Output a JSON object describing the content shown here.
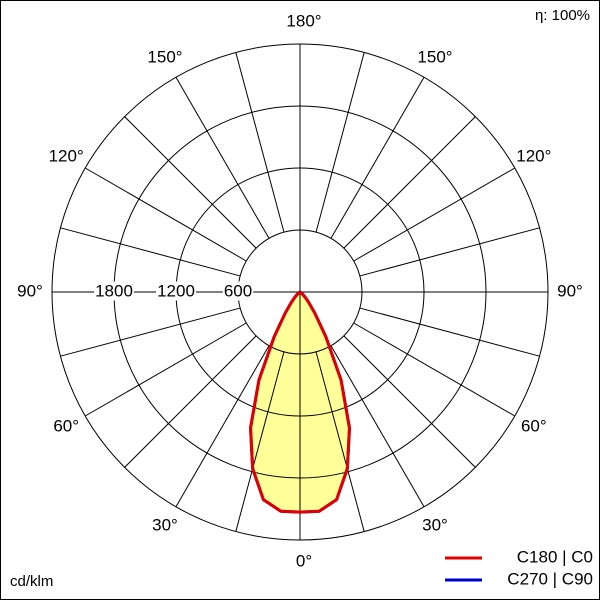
{
  "chart_data": {
    "type": "polar",
    "annotations": {
      "efficiency": "η: 100%",
      "unit": "cd/klm"
    },
    "gamma": [
      0,
      5,
      10,
      15,
      20,
      25,
      30,
      35,
      40,
      45,
      50,
      55,
      60,
      65,
      70,
      75,
      80,
      85,
      90
    ],
    "series": [
      {
        "name": "C270 | C90",
        "color": "#0000cc",
        "values": [
          2130,
          2130,
          2040,
          1770,
          1400,
          940,
          500,
          250,
          130,
          70,
          30,
          10,
          0,
          0,
          0,
          0,
          0,
          0,
          0
        ]
      },
      {
        "name": "C180 | C0",
        "color": "#e00000",
        "fill": "#ffff99",
        "values": [
          2130,
          2130,
          2040,
          1770,
          1400,
          940,
          500,
          250,
          130,
          70,
          30,
          10,
          0,
          0,
          0,
          0,
          0,
          0,
          0
        ]
      }
    ],
    "rlim": [
      0,
      2400
    ],
    "rticks": [
      600,
      1200,
      1800
    ],
    "angle_ticks": [
      {
        "value": 0,
        "label": "0°"
      },
      {
        "value": 30,
        "label": "30°"
      },
      {
        "value": 60,
        "label": "60°"
      },
      {
        "value": 90,
        "label": "90°"
      },
      {
        "value": 120,
        "label": "120°"
      },
      {
        "value": 150,
        "label": "150°"
      },
      {
        "value": 180,
        "label": "180°"
      }
    ]
  }
}
